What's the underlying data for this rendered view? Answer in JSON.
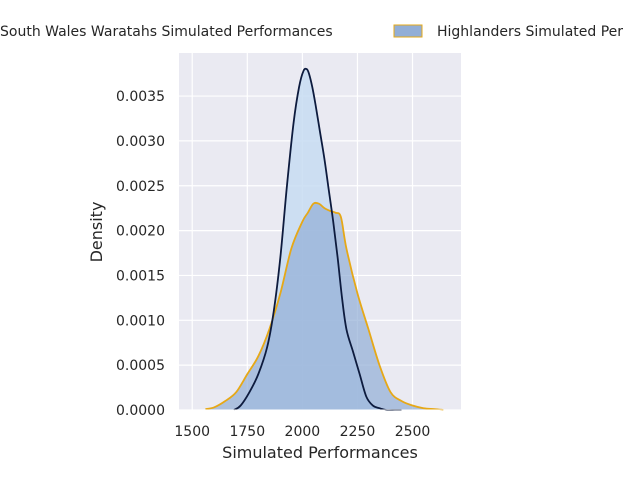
{
  "chart_data": {
    "type": "area",
    "title": "",
    "xlabel": "Simulated Performances",
    "ylabel": "Density",
    "xlim": [
      1440,
      2720
    ],
    "ylim": [
      0,
      0.00398
    ],
    "xticks": [
      1500,
      1750,
      2000,
      2250,
      2500
    ],
    "xtick_labels": [
      "1500",
      "1750",
      "2000",
      "2250",
      "2500"
    ],
    "yticks": [
      0,
      0.0005,
      0.001,
      0.0015,
      0.002,
      0.0025,
      0.003,
      0.0035
    ],
    "ytick_labels": [
      "0.0000",
      "0.0005",
      "0.0010",
      "0.0015",
      "0.0020",
      "0.0025",
      "0.0030",
      "0.0035"
    ],
    "grid": true,
    "legend_position": "top, outside plot",
    "series": [
      {
        "name": "New South Wales Waratahs Simulated Performances",
        "legend_label": "South Wales Waratahs Simulated Performances",
        "line_color": "#0d1b3e",
        "fill_color": "#c7dcf2",
        "x": [
          1690,
          1720,
          1760,
          1800,
          1840,
          1870,
          1900,
          1930,
          1960,
          1985,
          2005,
          2020,
          2030,
          2045,
          2060,
          2080,
          2100,
          2120,
          2140,
          2160,
          2180,
          2200,
          2230,
          2260,
          2290,
          2320,
          2350,
          2380,
          2420,
          2450
        ],
        "y": [
          0.0,
          5e-05,
          0.0002,
          0.0004,
          0.0007,
          0.0011,
          0.0017,
          0.0025,
          0.0032,
          0.0036,
          0.00378,
          0.0038,
          0.00375,
          0.0036,
          0.0034,
          0.0031,
          0.0028,
          0.00245,
          0.0021,
          0.0017,
          0.00125,
          0.0009,
          0.00065,
          0.0004,
          0.00015,
          5e-05,
          2e-05,
          0.0,
          0.0,
          0.0
        ]
      },
      {
        "name": "Highlanders Simulated Performances",
        "legend_label": "Highlanders Simulated Per",
        "line_color": "#e6a817",
        "fill_color": "#92aed6",
        "x": [
          1560,
          1600,
          1650,
          1700,
          1750,
          1800,
          1850,
          1900,
          1950,
          2000,
          2025,
          2050,
          2075,
          2100,
          2125,
          2150,
          2175,
          2200,
          2250,
          2300,
          2350,
          2400,
          2450,
          2500,
          2550,
          2600,
          2640
        ],
        "y": [
          1e-05,
          3e-05,
          0.0001,
          0.0002,
          0.0004,
          0.0006,
          0.0009,
          0.0013,
          0.0018,
          0.0021,
          0.0022,
          0.0023,
          0.0023,
          0.00225,
          0.00222,
          0.0022,
          0.00215,
          0.0018,
          0.0013,
          0.0009,
          0.0005,
          0.0002,
          0.0001,
          5e-05,
          2e-05,
          1e-05,
          0.0
        ]
      }
    ]
  }
}
